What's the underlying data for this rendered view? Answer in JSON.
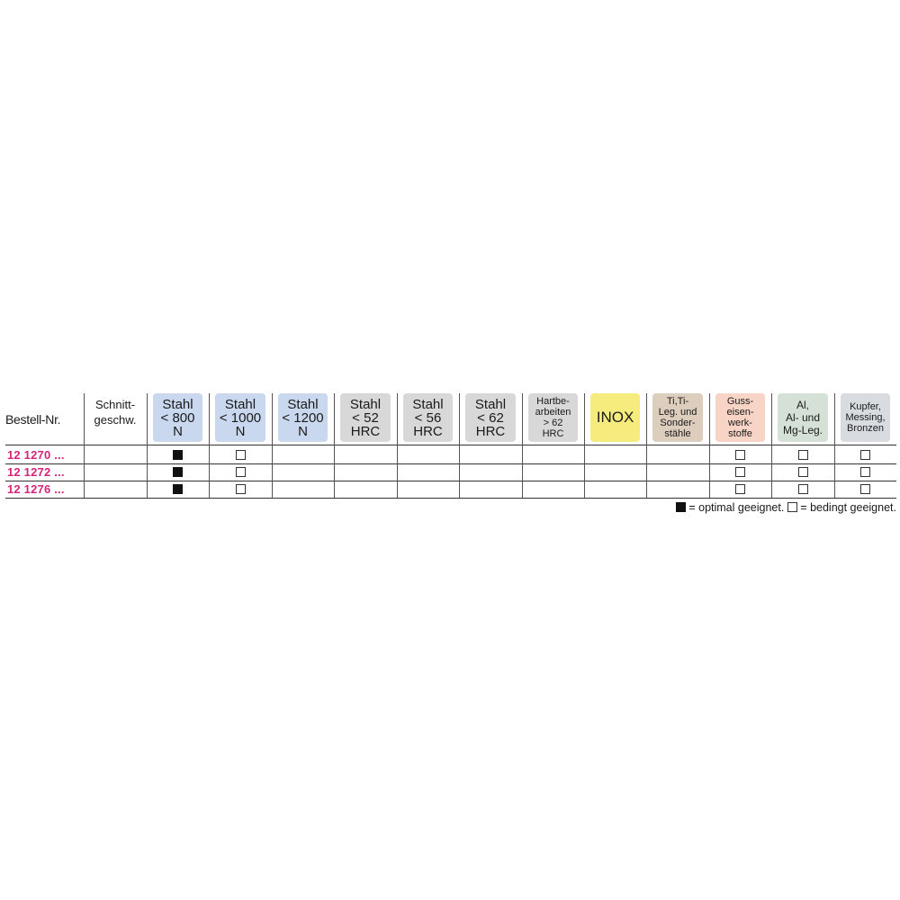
{
  "header": {
    "bestell_label": "Bestell-Nr.",
    "schnitt_label": "Schnitt-\ngeschw.",
    "materials": [
      {
        "label": "Stahl\n< 800\nN",
        "color": "#c9d8ee",
        "size": "big"
      },
      {
        "label": "Stahl\n< 1000\nN",
        "color": "#c9d8ee",
        "size": "big"
      },
      {
        "label": "Stahl\n< 1200\nN",
        "color": "#c9d8ee",
        "size": "big"
      },
      {
        "label": "Stahl\n< 52\nHRC",
        "color": "#d8d8d8",
        "size": "big"
      },
      {
        "label": "Stahl\n< 56\nHRC",
        "color": "#d8d8d8",
        "size": "big"
      },
      {
        "label": "Stahl\n< 62\nHRC",
        "color": "#d8d8d8",
        "size": "big"
      },
      {
        "label": "Hartbe-\narbeiten\n> 62\nHRC",
        "color": "#d8d8d8",
        "size": "small"
      },
      {
        "label": "INOX",
        "color": "#f6ec7e",
        "size": "inox"
      },
      {
        "label": "Ti,Ti-\nLeg. und\nSonder-\nstähle",
        "color": "#ddcdbd",
        "size": "small"
      },
      {
        "label": "Guss-\neisen-\nwerk-\nstoffe",
        "color": "#f7d4c6",
        "size": "small"
      },
      {
        "label": "Al,\nAl- und\nMg-Leg.",
        "color": "#d5e1d6",
        "size": "mid"
      },
      {
        "label": "Kupfer,\nMessing,\nBronzen",
        "color": "#d8dce1",
        "size": "small"
      }
    ]
  },
  "rows": [
    {
      "code": "12 1270 ...",
      "schnitt": "",
      "marks": [
        "full",
        "empty",
        "",
        "",
        "",
        "",
        "",
        "",
        "",
        "empty",
        "empty",
        "empty"
      ]
    },
    {
      "code": "12 1272 ...",
      "schnitt": "",
      "marks": [
        "full",
        "empty",
        "",
        "",
        "",
        "",
        "",
        "",
        "",
        "empty",
        "empty",
        "empty"
      ]
    },
    {
      "code": "12 1276 ...",
      "schnitt": "",
      "marks": [
        "full",
        "empty",
        "",
        "",
        "",
        "",
        "",
        "",
        "",
        "empty",
        "empty",
        "empty"
      ]
    }
  ],
  "legend": {
    "optimal": "= optimal geeignet.",
    "bedingt": "= bedingt geeignet."
  },
  "colors": {
    "code_text": "#d6247a"
  }
}
